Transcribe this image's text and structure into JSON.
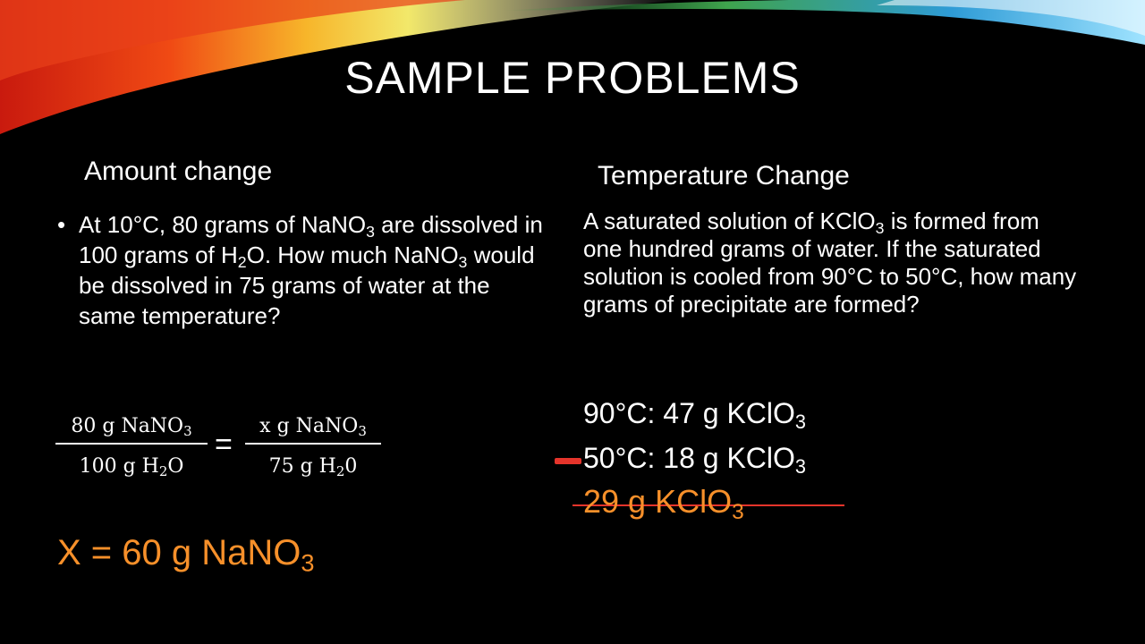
{
  "slide": {
    "title": "SAMPLE PROBLEMS"
  },
  "left": {
    "heading": "Amount change",
    "bullet": "•",
    "problem": {
      "p1": "At 10°C, 80 grams of NaNO",
      "s1": "3",
      "p2": " are dissolved in 100 grams of H",
      "s2": "2",
      "p3": "O. How much NaNO",
      "s3": "3",
      "p4": " would be dissolved in 75 grams of water at the same temperature?"
    },
    "equation": {
      "f1_num": "80 g NaNO",
      "f1_num_sub": "3",
      "f1_den": "100 g H",
      "f1_den_sub": "2",
      "f1_den_end": "O",
      "equals": "=",
      "f2_num": "x g NaNO",
      "f2_num_sub": "3",
      "f2_den": "75 g H",
      "f2_den_sub": "2",
      "f2_den_end": "0"
    },
    "answer": {
      "text": "X = 60 g  NaNO",
      "sub": "3"
    }
  },
  "right": {
    "heading": "Temperature Change",
    "problem": {
      "p1": "A saturated solution of KClO",
      "s1": "3",
      "p2": " is formed from one hundred grams of water. If the saturated solution is cooled from 90°C to 50°C, how many grams of precipitate are formed?"
    },
    "line1": {
      "text": "90°C: 47 g KClO",
      "sub": "3"
    },
    "line2": {
      "text": "50°C: 18 g KClO",
      "sub": "3"
    },
    "answer": {
      "text": "29 g KClO",
      "sub": "3"
    }
  },
  "colors": {
    "accent": "#f7902a",
    "ink_mark": "#e5342b",
    "background": "#000000"
  }
}
